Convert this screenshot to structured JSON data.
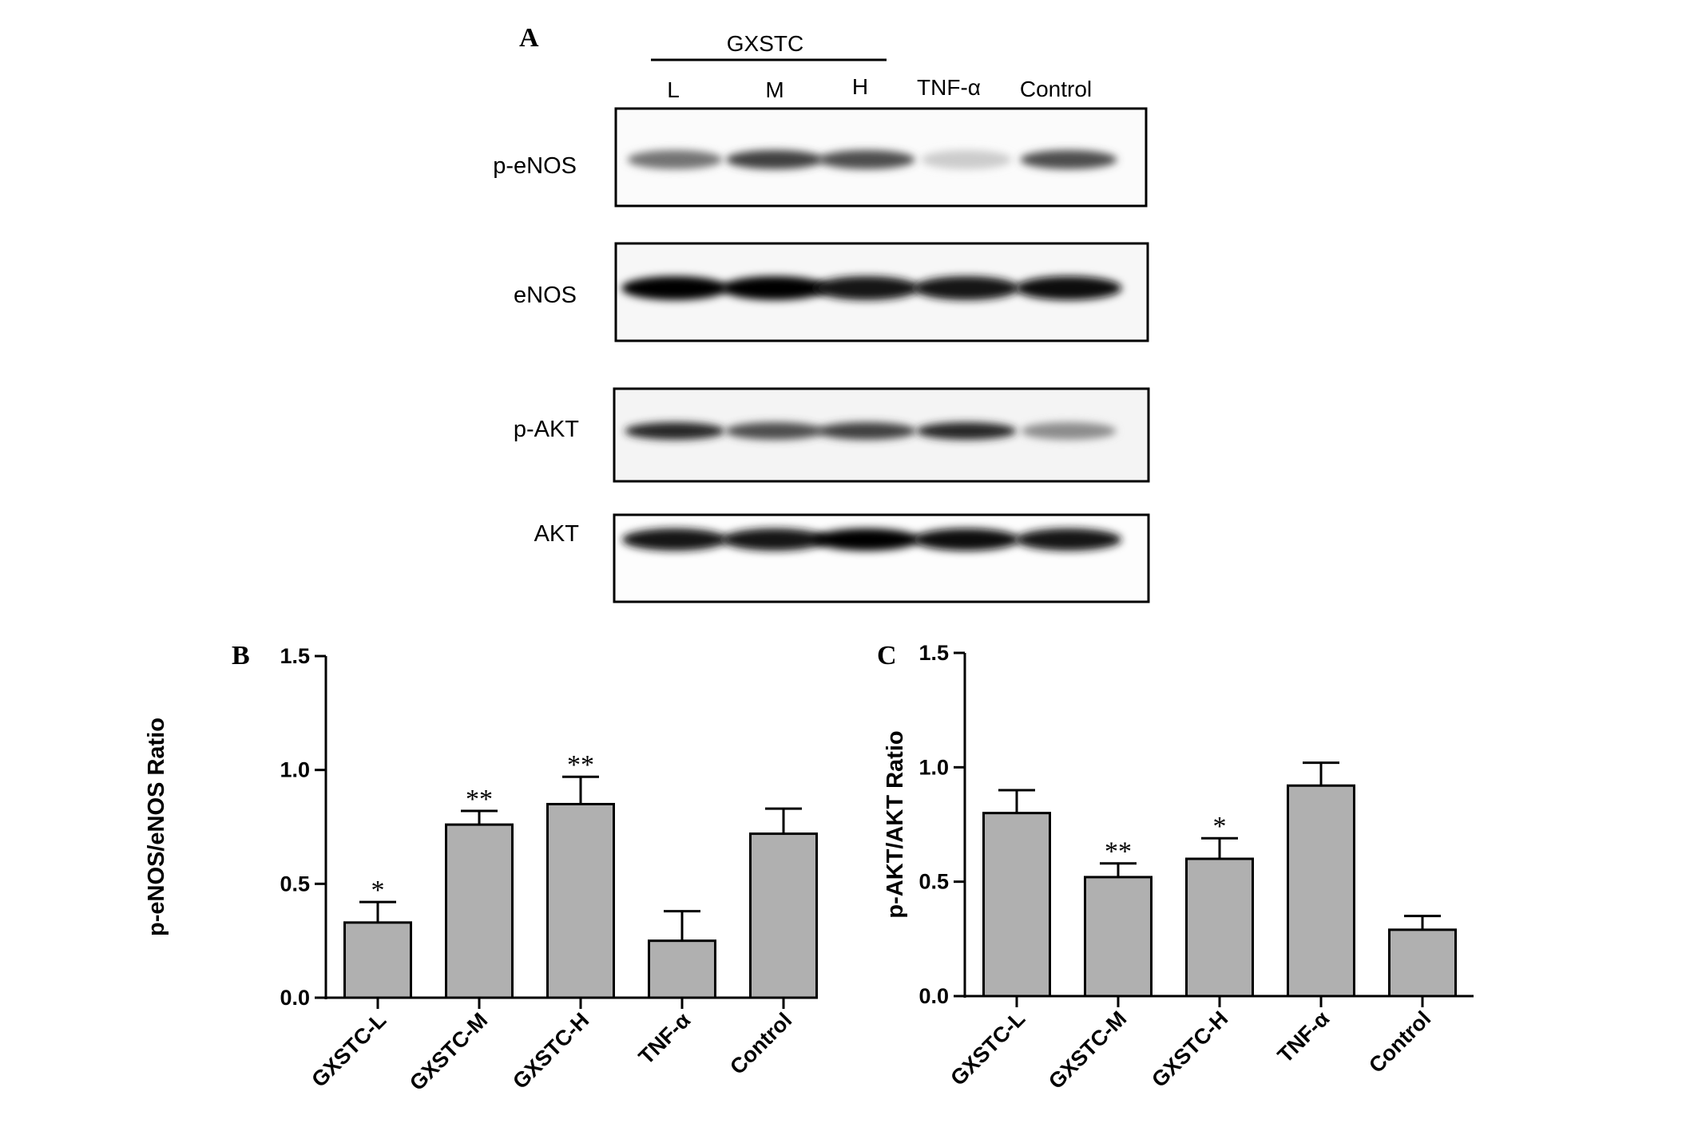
{
  "blot": {
    "panel_letter": "A",
    "group_label": "GXSTC",
    "lane_labels": [
      "L",
      "M",
      "H",
      "TNF-α",
      "Control"
    ],
    "proteins": [
      "p-eNOS",
      "eNOS",
      "p-AKT",
      "AKT"
    ],
    "band_intensity": {
      "p-eNOS": [
        0.55,
        0.75,
        0.7,
        0.2,
        0.7
      ],
      "eNOS": [
        1.0,
        1.0,
        0.9,
        0.9,
        0.95
      ],
      "p-AKT": [
        0.85,
        0.7,
        0.75,
        0.85,
        0.45
      ],
      "AKT": [
        0.9,
        0.9,
        1.0,
        0.95,
        0.9
      ]
    }
  },
  "chart_data": [
    {
      "panel_letter": "B",
      "type": "bar",
      "categories": [
        "GXSTC-L",
        "GXSTC-M",
        "GXSTC-H",
        "TNF-α",
        "Control"
      ],
      "values": [
        0.33,
        0.76,
        0.85,
        0.25,
        0.72
      ],
      "errors": [
        0.09,
        0.06,
        0.12,
        0.13,
        0.11
      ],
      "significance": [
        "*",
        "**",
        "**",
        "",
        ""
      ],
      "ylabel": "p-eNOS/eNOS Ratio",
      "ylim": [
        0,
        1.5
      ],
      "yticks": [
        "0.0",
        "0.5",
        "1.0",
        "1.5"
      ],
      "bar_color": "#b0b0b0"
    },
    {
      "panel_letter": "C",
      "type": "bar",
      "categories": [
        "GXSTC-L",
        "GXSTC-M",
        "GXSTC-H",
        "TNF-α",
        "Control"
      ],
      "values": [
        0.8,
        0.52,
        0.6,
        0.92,
        0.29
      ],
      "errors": [
        0.1,
        0.06,
        0.09,
        0.1,
        0.06
      ],
      "significance": [
        "",
        "**",
        "*",
        "",
        ""
      ],
      "ylabel": "p-AKT/AKT Ratio",
      "ylim": [
        0,
        1.5
      ],
      "yticks": [
        "0.0",
        "0.5",
        "1.0",
        "1.5"
      ],
      "bar_color": "#b0b0b0"
    }
  ]
}
